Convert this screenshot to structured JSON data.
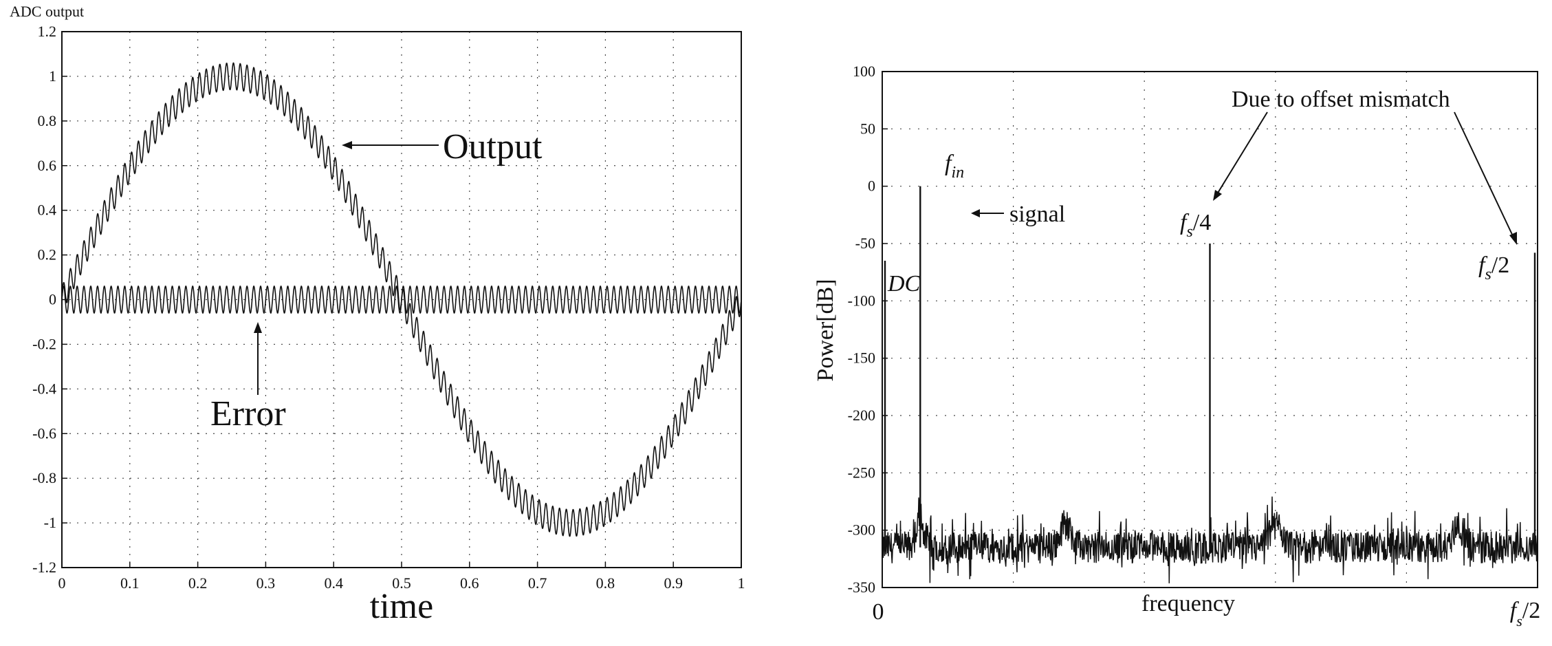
{
  "chart_data": [
    {
      "type": "line",
      "ylabel_top": "ADC output",
      "xlabel": "time",
      "xlim": [
        0,
        1
      ],
      "ylim": [
        -1.2,
        1.2
      ],
      "grid": true,
      "x_ticks": [
        "0",
        "0.1",
        "0.2",
        "0.3",
        "0.4",
        "0.5",
        "0.6",
        "0.7",
        "0.8",
        "0.9",
        "1"
      ],
      "y_ticks": [
        "1.2",
        "1",
        "0.8",
        "0.6",
        "0.4",
        "0.2",
        "0",
        "-0.2",
        "-0.4",
        "-0.6",
        "-0.8",
        "-1",
        "-1.2"
      ],
      "series": [
        {
          "name": "Output",
          "shape": "sine",
          "amplitude": 1.0,
          "cycles": 1,
          "ripple_amplitude": 0.06,
          "ripple_cycles": 100
        },
        {
          "name": "Error",
          "shape": "ripple",
          "amplitude": 0.06,
          "cycles": 100
        }
      ],
      "annotations": [
        "Output",
        "Error"
      ]
    },
    {
      "type": "line",
      "ylabel": "Power[dB]",
      "xlabel": "frequency",
      "ylim": [
        -350,
        100
      ],
      "grid": true,
      "x_ticks": [
        "0",
        "f_s/2"
      ],
      "y_ticks": [
        "100",
        "50",
        "0",
        "-50",
        "-100",
        "-150",
        "-200",
        "-250",
        "-300",
        "-350"
      ],
      "noise_floor_db": -315,
      "peaks": [
        {
          "label": "DC",
          "freq": 0.0,
          "db": -65
        },
        {
          "label": "f_in",
          "freq": 0.058,
          "db": 0
        },
        {
          "label": "f_s/4",
          "freq": 0.5,
          "db": -50
        },
        {
          "label": "f_s/2",
          "freq": 1.0,
          "db": -58
        }
      ],
      "annotations": {
        "signal": "signal",
        "mismatch": "Due to offset mismatch",
        "fin_main": "f",
        "fin_sub": "in",
        "fs4_main": "f",
        "fs4_sub": "s",
        "fs4_tail": "/4",
        "fs2_main": "f",
        "fs2_sub": "s",
        "fs2_tail": "/2",
        "dc": "DC"
      }
    }
  ]
}
